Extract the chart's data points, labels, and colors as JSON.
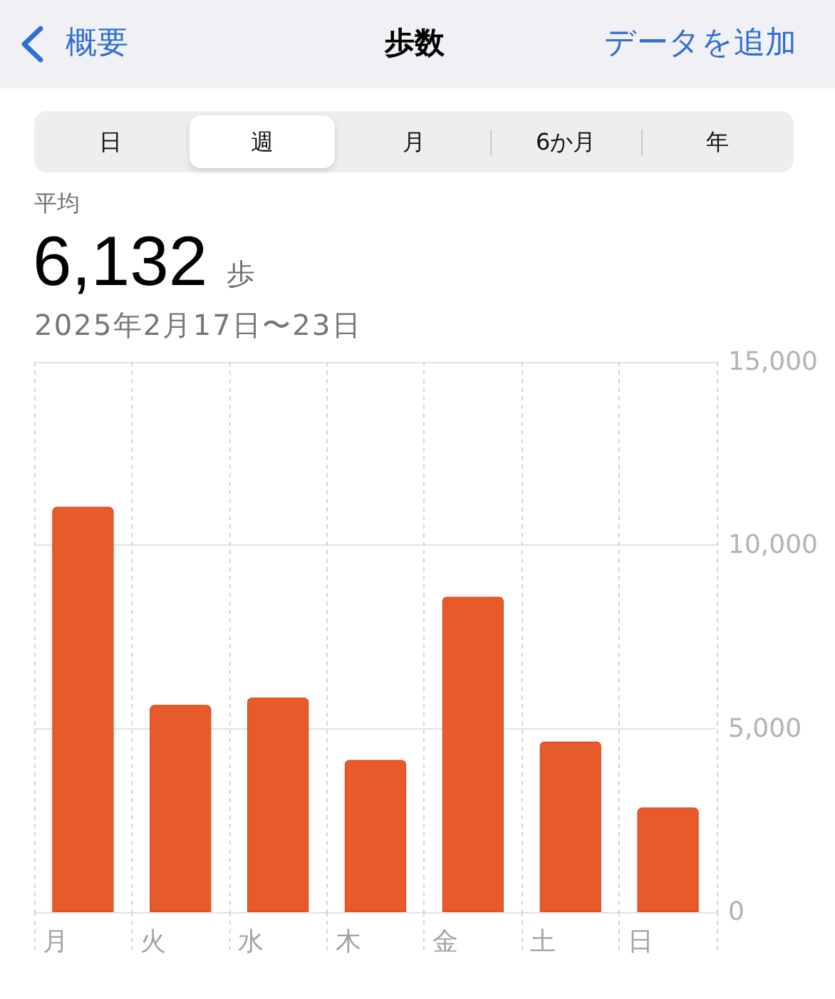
{
  "chart_data": {
    "type": "bar",
    "title": "歩数",
    "subtitle": "2025年2月17日〜23日",
    "categories": [
      "月",
      "火",
      "水",
      "木",
      "金",
      "土",
      "日"
    ],
    "values": [
      11050,
      5650,
      5850,
      4150,
      8600,
      4650,
      2850
    ],
    "color": "#e95a2a",
    "ylim": [
      0,
      15000
    ],
    "yticks": [
      0,
      {
        "value": 5000,
        "label": "5,000"
      },
      {
        "value": 10000,
        "label": "10,000"
      },
      {
        "value": 15000,
        "label": "15,000"
      }
    ],
    "grid": true,
    "annotations": [
      "概要",
      "データを追加",
      "日",
      "週",
      "月",
      "6か月",
      "年",
      "平均",
      "6,132",
      "歩"
    ]
  }
}
